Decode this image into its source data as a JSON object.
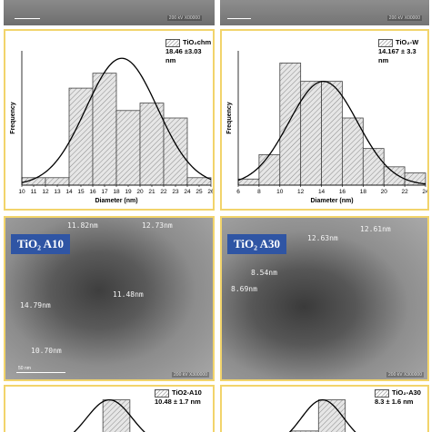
{
  "top_strip": {
    "left": {
      "kv": "200 kV  X00000"
    },
    "right": {
      "kv": "200 kV  X00000"
    }
  },
  "tem": [
    {
      "label": "TiO₂ A10",
      "kv": "200 kV  X300000",
      "scale": "50 nm",
      "annotations": [
        "11.82nm",
        "12.73nm",
        "11.48nm",
        "14.79nm",
        "10.70nm"
      ]
    },
    {
      "label": "TiO₂ A30",
      "kv": "200 kV  X300000",
      "scale": "50 nm",
      "annotations": [
        "12.63nm",
        "12.61nm",
        "8.54nm",
        "8.69nm"
      ]
    }
  ],
  "chart_data": [
    {
      "type": "bar",
      "legend": "TiO₂chm",
      "stat": "18.46 ±3.03 nm",
      "xlabel": "Diameter (nm)",
      "ylabel": "Frequency",
      "x_ticks": [
        "10",
        "11",
        "12",
        "13",
        "14",
        "15",
        "16",
        "17",
        "18",
        "19",
        "20",
        "21",
        "22",
        "23",
        "24",
        "25",
        "26"
      ],
      "xlim": [
        10,
        26
      ],
      "bins": [
        {
          "from": 10,
          "to": 12,
          "value": 1
        },
        {
          "from": 12,
          "to": 14,
          "value": 1
        },
        {
          "from": 14,
          "to": 16,
          "value": 13
        },
        {
          "from": 16,
          "to": 18,
          "value": 15
        },
        {
          "from": 18,
          "to": 20,
          "value": 10
        },
        {
          "from": 20,
          "to": 22,
          "value": 11
        },
        {
          "from": 22,
          "to": 24,
          "value": 9
        },
        {
          "from": 24,
          "to": 26,
          "value": 1
        }
      ],
      "curve": {
        "mean": 18.46,
        "sd": 3.03,
        "peak": 17
      },
      "ylim": [
        0,
        18
      ]
    },
    {
      "type": "bar",
      "legend": "TiO₂-W",
      "stat": "14.167 ± 3.3 nm",
      "xlabel": "Diameter (nm)",
      "ylabel": "Frequency",
      "x_ticks": [
        "6",
        "8",
        "10",
        "12",
        "14",
        "16",
        "18",
        "20",
        "22",
        "24"
      ],
      "xlim": [
        6,
        24
      ],
      "bins": [
        {
          "from": 6,
          "to": 8,
          "value": 1
        },
        {
          "from": 8,
          "to": 10,
          "value": 5
        },
        {
          "from": 10,
          "to": 12,
          "value": 20
        },
        {
          "from": 12,
          "to": 14,
          "value": 17
        },
        {
          "from": 14,
          "to": 16,
          "value": 17
        },
        {
          "from": 16,
          "to": 18,
          "value": 11
        },
        {
          "from": 18,
          "to": 20,
          "value": 6
        },
        {
          "from": 20,
          "to": 22,
          "value": 3
        },
        {
          "from": 22,
          "to": 24,
          "value": 2
        }
      ],
      "curve": {
        "mean": 14.167,
        "sd": 3.3,
        "peak": 17
      },
      "ylim": [
        0,
        22
      ]
    },
    {
      "type": "bar",
      "legend": "TiO2-A10",
      "stat": "10.48 ± 1.7 nm",
      "xlim": [
        4,
        18
      ],
      "bins": [
        {
          "from": 8,
          "to": 10,
          "value": 3
        },
        {
          "from": 10,
          "to": 12,
          "value": 12
        },
        {
          "from": 12,
          "to": 14,
          "value": 3
        }
      ],
      "curve": {
        "mean": 10.48,
        "sd": 1.7,
        "peak": 12
      },
      "ylim": [
        0,
        14
      ]
    },
    {
      "type": "bar",
      "legend": "TiO₂-A30",
      "stat": "8.3 ± 1.6 nm",
      "xlim": [
        2,
        16
      ],
      "bins": [
        {
          "from": 6,
          "to": 8,
          "value": 4
        },
        {
          "from": 8,
          "to": 10,
          "value": 12
        },
        {
          "from": 10,
          "to": 12,
          "value": 3
        }
      ],
      "curve": {
        "mean": 8.3,
        "sd": 1.6,
        "peak": 12
      },
      "ylim": [
        0,
        14
      ]
    }
  ]
}
